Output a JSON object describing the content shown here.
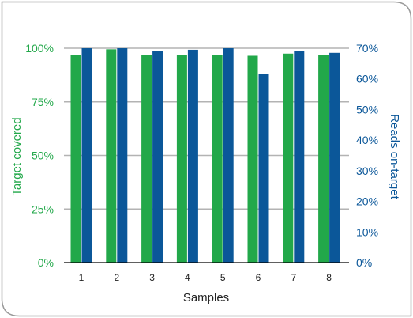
{
  "chart_data": {
    "type": "bar",
    "xlabel": "Samples",
    "ylabel_left": "Target covered",
    "ylabel_right": "Reads on-target",
    "categories": [
      "1",
      "2",
      "3",
      "4",
      "5",
      "6",
      "7",
      "8"
    ],
    "series": [
      {
        "name": "Target covered",
        "axis": "left",
        "color": "#22a84a",
        "values": [
          97,
          99.5,
          97,
          97,
          97,
          96.5,
          97.5,
          97
        ]
      },
      {
        "name": "Reads on-target",
        "axis": "right",
        "color": "#0b5799",
        "values": [
          70,
          70,
          69,
          69.5,
          70,
          61.5,
          69,
          68.5
        ]
      }
    ],
    "ylim_left": [
      0,
      100
    ],
    "ylim_right": [
      0,
      70
    ],
    "yticks_left": [
      {
        "value": 0,
        "label": "0%"
      },
      {
        "value": 25,
        "label": "25%"
      },
      {
        "value": 50,
        "label": "50%"
      },
      {
        "value": 75,
        "label": "75%"
      },
      {
        "value": 100,
        "label": "100%"
      }
    ],
    "yticks_right": [
      {
        "value": 0,
        "label": "0%"
      },
      {
        "value": 10,
        "label": "10%"
      },
      {
        "value": 20,
        "label": "20%"
      },
      {
        "value": 30,
        "label": "30%"
      },
      {
        "value": 40,
        "label": "40%"
      },
      {
        "value": 50,
        "label": "50%"
      },
      {
        "value": 60,
        "label": "60%"
      },
      {
        "value": 70,
        "label": "70%"
      }
    ],
    "grid": true,
    "legend": "none",
    "colors": {
      "left_axis": "#22a84a",
      "right_axis": "#0b5799",
      "grid": "#b3b3b3",
      "frame": "#9a9a9a"
    }
  }
}
